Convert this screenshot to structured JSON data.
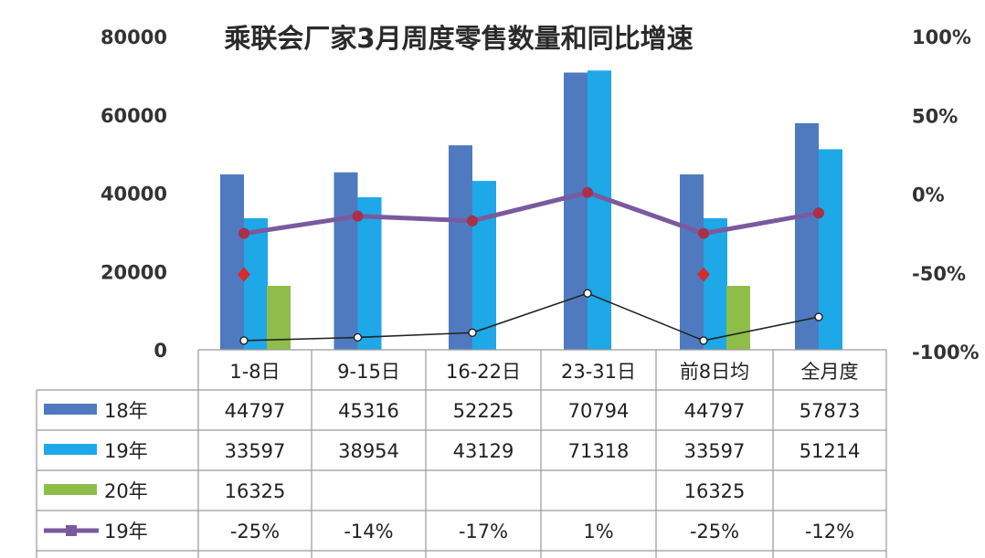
{
  "chart_data": {
    "type": "bar",
    "title": "乘联会厂家3月周度零售数量和同比增速",
    "categories": [
      "1-8日",
      "9-15日",
      "16-22日",
      "23-31日",
      "前8日均",
      "全月度"
    ],
    "left_axis": {
      "ticks": [
        "80000",
        "60000",
        "40000",
        "20000",
        "0"
      ],
      "ylim": [
        0,
        80000
      ]
    },
    "right_axis": {
      "ticks": [
        "100%",
        "50%",
        "0%",
        "-50%",
        "-100%"
      ],
      "ylim": [
        -100,
        100
      ]
    },
    "series": [
      {
        "name": "18年",
        "kind": "bar",
        "axis": "left",
        "color": "#4f7ac0",
        "values": [
          44797,
          45316,
          52225,
          70794,
          44797,
          57873
        ],
        "labels": [
          "44797",
          "45316",
          "52225",
          "70794",
          "44797",
          "57873"
        ]
      },
      {
        "name": "19年",
        "kind": "bar",
        "axis": "left",
        "color": "#1ea8e8",
        "values": [
          33597,
          38954,
          43129,
          71318,
          33597,
          51214
        ],
        "labels": [
          "33597",
          "38954",
          "43129",
          "71318",
          "33597",
          "51214"
        ]
      },
      {
        "name": "20年",
        "kind": "bar",
        "axis": "left",
        "color": "#8fbd49",
        "values": [
          16325,
          null,
          null,
          null,
          16325,
          null
        ],
        "labels": [
          "16325",
          "",
          "",
          "",
          "16325",
          ""
        ]
      },
      {
        "name": "19年",
        "kind": "line",
        "axis": "right",
        "color": "#7a5a9e",
        "values": [
          -25,
          -14,
          -17,
          1,
          -25,
          -12
        ],
        "labels": [
          "-25%",
          "-14%",
          "-17%",
          "1%",
          "-25%",
          "-12%"
        ]
      },
      {
        "name": "20年",
        "kind": "point",
        "axis": "right",
        "color": "#d42b2b",
        "values": [
          -51,
          null,
          null,
          null,
          -51,
          null
        ],
        "labels": [
          "",
          "",
          "",
          "",
          "",
          ""
        ]
      },
      {
        "name": "",
        "kind": "thin-line",
        "axis": "right",
        "color": "#222222",
        "values": [
          -93,
          -91,
          -88,
          -63,
          -93,
          -78
        ],
        "labels": []
      }
    ],
    "legend": "table-left",
    "grid": false
  }
}
